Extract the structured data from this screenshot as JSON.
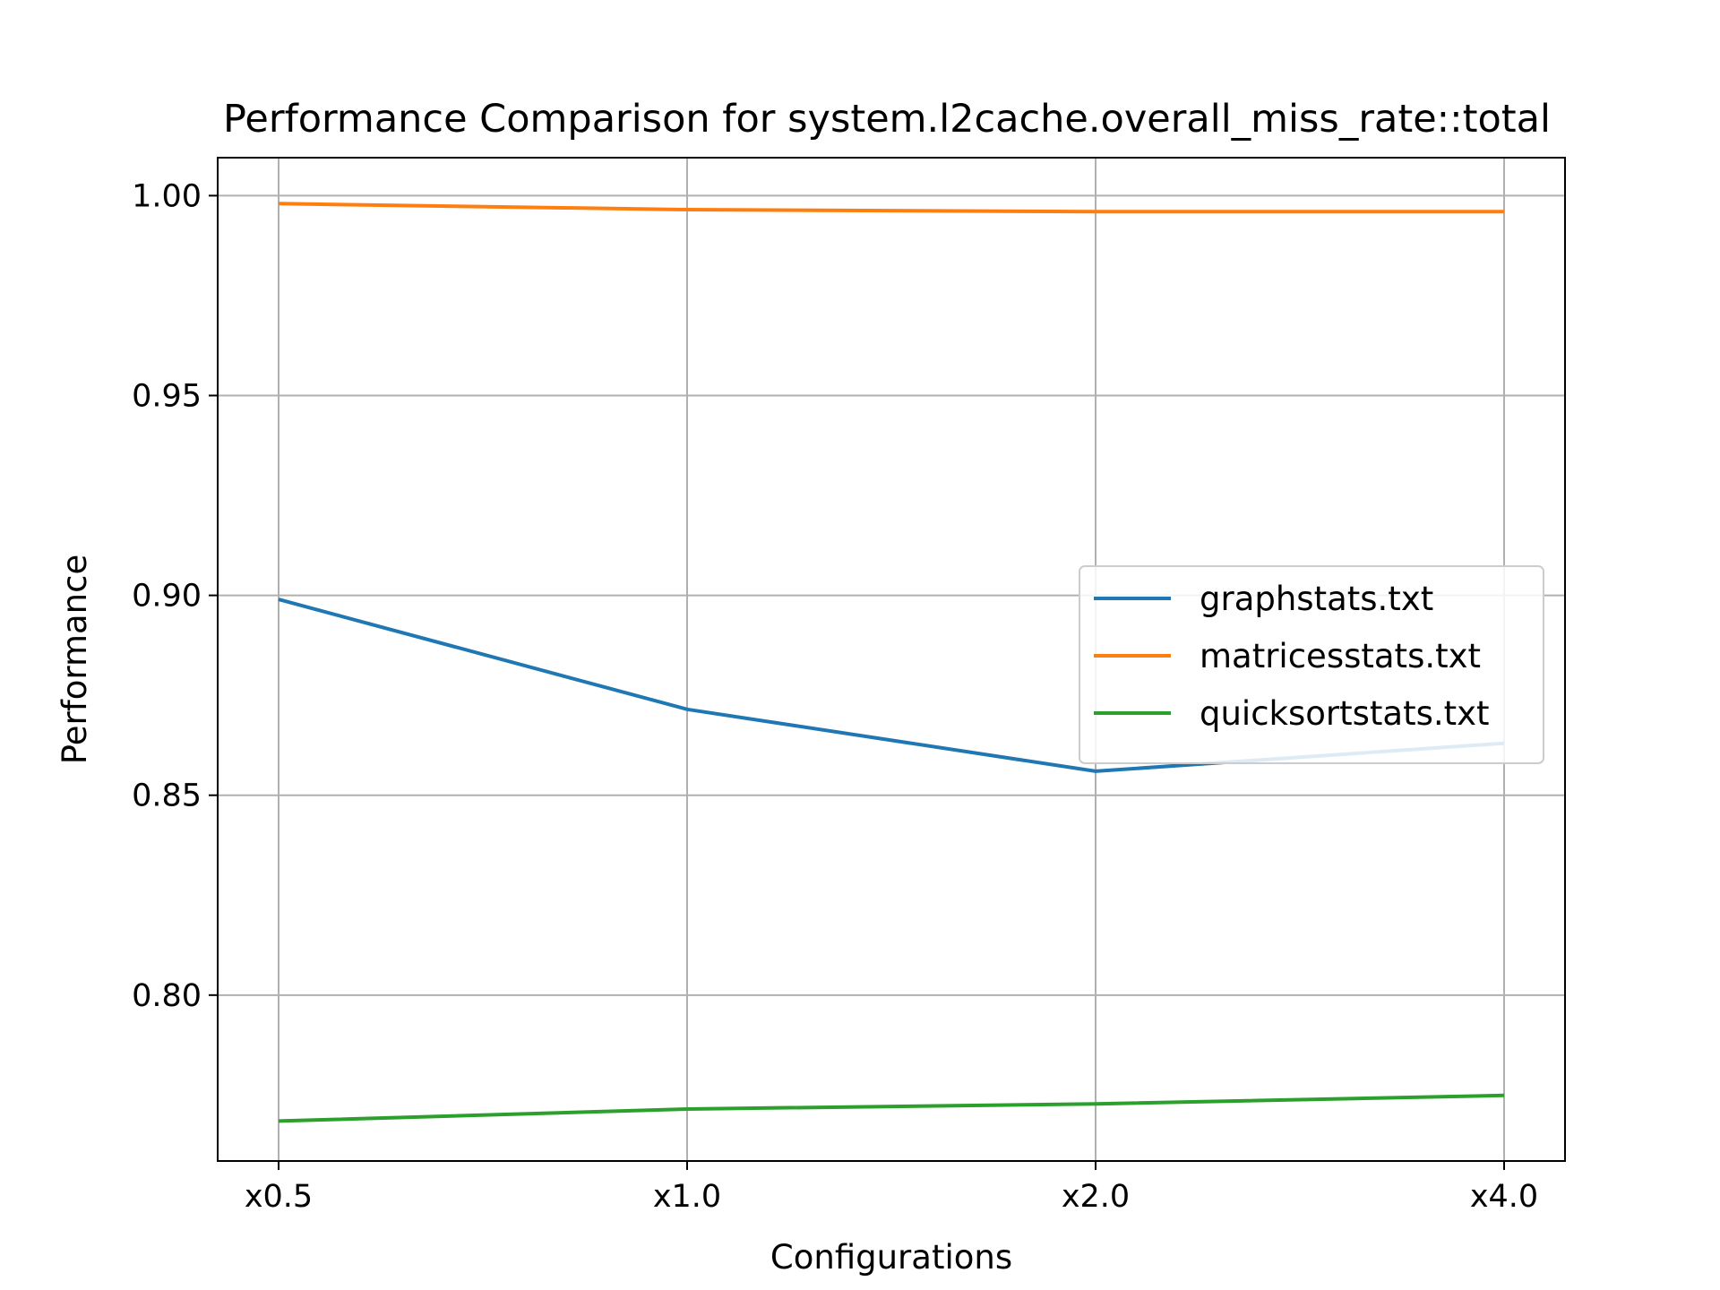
{
  "chart_data": {
    "type": "line",
    "title": "Performance Comparison for system.l2cache.overall_miss_rate::total",
    "xlabel": "Configurations",
    "ylabel": "Performance",
    "categories": [
      "x0.5",
      "x1.0",
      "x2.0",
      "x4.0"
    ],
    "ylim": [
      0.7585,
      1.0095
    ],
    "yticks": [
      0.8,
      0.85,
      0.9,
      0.95,
      1.0
    ],
    "ytick_labels": [
      "0.80",
      "0.85",
      "0.90",
      "0.95",
      "1.00"
    ],
    "grid": true,
    "legend_position": "center-right",
    "series": [
      {
        "name": "graphstats.txt",
        "color": "#1f77b4",
        "values": [
          0.899,
          0.8715,
          0.856,
          0.863
        ]
      },
      {
        "name": "matricesstats.txt",
        "color": "#ff7f0e",
        "values": [
          0.998,
          0.9965,
          0.996,
          0.996
        ]
      },
      {
        "name": "quicksortstats.txt",
        "color": "#2ca02c",
        "values": [
          0.7685,
          0.7715,
          0.7728,
          0.7749
        ]
      }
    ]
  }
}
